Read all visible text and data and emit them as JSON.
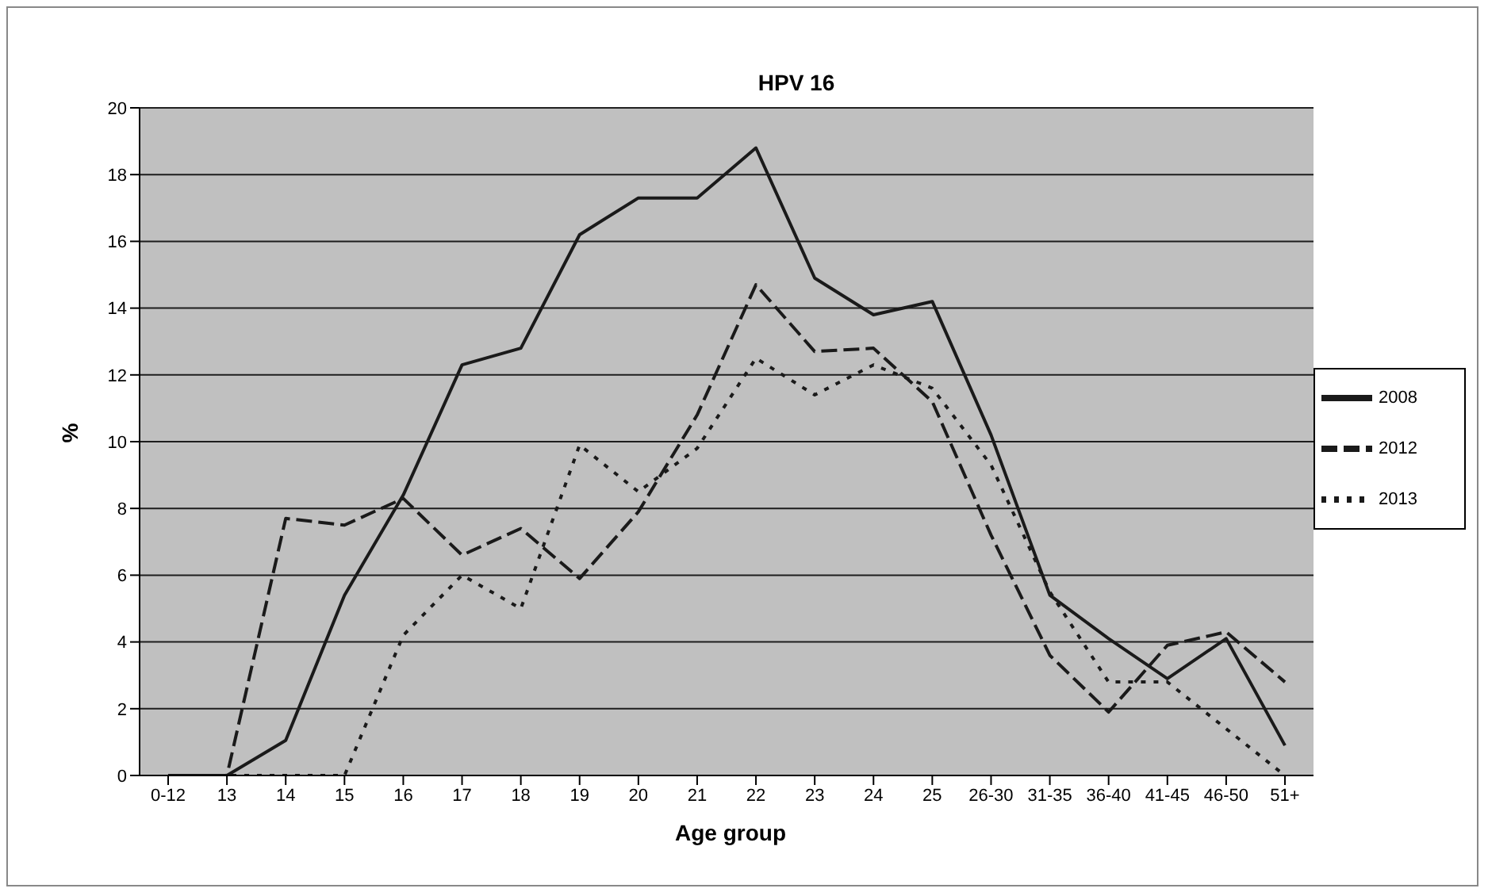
{
  "chart_data": {
    "type": "line",
    "title": "HPV 16",
    "xlabel": "Age group",
    "ylabel": "%",
    "categories": [
      "0-12",
      "13",
      "14",
      "15",
      "16",
      "17",
      "18",
      "19",
      "20",
      "21",
      "22",
      "23",
      "24",
      "25",
      "26-30",
      "31-35",
      "36-40",
      "41-45",
      "46-50",
      "51+"
    ],
    "series": [
      {
        "name": "2008",
        "color": "#1a1a1a",
        "line_style": "solid",
        "values": [
          0,
          0,
          1.05,
          5.4,
          8.4,
          12.3,
          12.8,
          16.2,
          17.3,
          17.3,
          18.8,
          14.9,
          13.8,
          14.2,
          10.2,
          5.4,
          4.1,
          2.9,
          4.1,
          0.9
        ]
      },
      {
        "name": "2012",
        "color": "#1a1a1a",
        "line_style": "dashed",
        "values": [
          0,
          0,
          7.7,
          7.5,
          8.3,
          6.6,
          7.4,
          5.9,
          7.9,
          10.8,
          14.7,
          12.7,
          12.8,
          11.2,
          7.2,
          3.6,
          1.9,
          3.9,
          4.3,
          2.8
        ]
      },
      {
        "name": "2013",
        "color": "#1a1a1a",
        "line_style": "dotted",
        "values": [
          0,
          0,
          0,
          0,
          4.2,
          6.0,
          5.0,
          9.9,
          8.5,
          9.8,
          12.5,
          11.4,
          12.3,
          11.6,
          9.3,
          5.5,
          2.8,
          2.8,
          1.4,
          0
        ]
      }
    ],
    "ylim": [
      0,
      20
    ],
    "yticks": [
      0,
      2,
      4,
      6,
      8,
      10,
      12,
      14,
      16,
      18,
      20
    ],
    "grid": "y",
    "legend": "right",
    "marker": "none"
  }
}
